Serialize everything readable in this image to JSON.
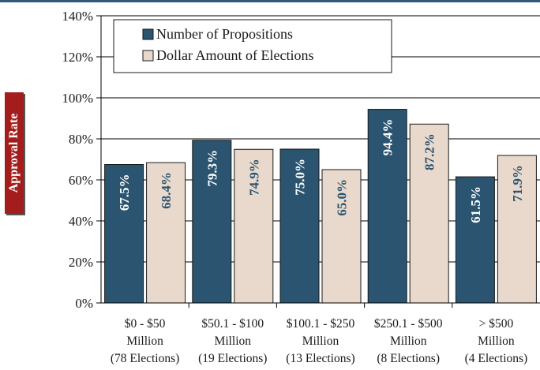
{
  "chart_data": {
    "type": "bar",
    "ylabel": "Approval Rate",
    "ylim": [
      0,
      140
    ],
    "yticks": [
      "0%",
      "20%",
      "40%",
      "60%",
      "80%",
      "100%",
      "120%",
      "140%"
    ],
    "categories": [
      [
        "$0 - $50",
        "Million",
        "(78 Elections)"
      ],
      [
        "$50.1 - $100",
        "Million",
        "(19 Elections)"
      ],
      [
        "$100.1 - $250",
        "Million",
        "(13 Elections)"
      ],
      [
        "$250.1 - $500",
        "Million",
        "(8 Elections)"
      ],
      [
        "> $500",
        "Million",
        "(4 Elections)"
      ]
    ],
    "series": [
      {
        "name": "Number of Propositions",
        "values": [
          67.5,
          79.3,
          75.0,
          94.4,
          61.5
        ],
        "labels": [
          "67.5%",
          "79.3%",
          "75.0%",
          "94.4%",
          "61.5%"
        ]
      },
      {
        "name": "Dollar Amount of Elections",
        "values": [
          68.4,
          74.9,
          65.0,
          87.2,
          71.9
        ],
        "labels": [
          "68.4%",
          "74.9%",
          "65.0%",
          "87.2%",
          "71.9%"
        ]
      }
    ],
    "legend": "top-left",
    "grid": true
  },
  "colors": {
    "series1": "#2a5470",
    "series2": "#e8d9cc",
    "label1": "#ffffff",
    "label2": "#2a5470",
    "ylabel_bg": "#a31d1d"
  }
}
